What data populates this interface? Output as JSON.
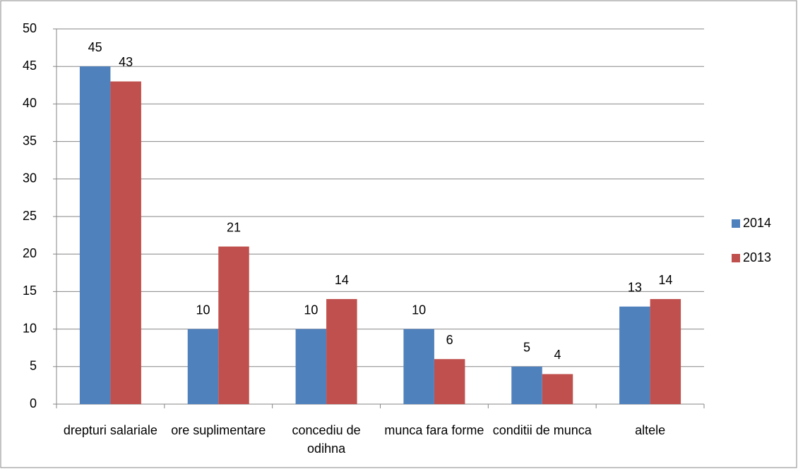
{
  "chart_data": {
    "type": "bar",
    "categories": [
      "drepturi salariale",
      "ore suplimentare",
      "concediu de odihna",
      "munca fara forme",
      "conditii de munca",
      "altele"
    ],
    "series": [
      {
        "name": "2014",
        "color": "#4f81bd",
        "values": [
          45,
          10,
          10,
          10,
          5,
          13
        ]
      },
      {
        "name": "2013",
        "color": "#c0504d",
        "values": [
          43,
          21,
          14,
          6,
          4,
          14
        ]
      }
    ],
    "ylim": [
      0,
      50
    ],
    "yticks": [
      0,
      5,
      10,
      15,
      20,
      25,
      30,
      35,
      40,
      45,
      50
    ],
    "grid": true,
    "legend": "right"
  }
}
